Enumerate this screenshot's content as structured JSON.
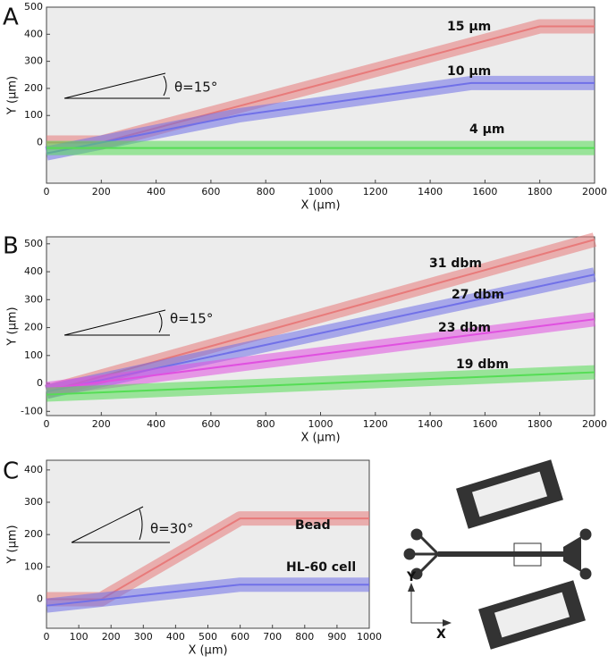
{
  "chart_data": [
    {
      "type": "line",
      "panel": "A",
      "xlabel": "X (μm)",
      "ylabel": "Y (μm)",
      "angle_label": "θ=15°",
      "xlim": [
        0,
        2000
      ],
      "ylim": [
        -150,
        500
      ],
      "xticks": [
        0,
        200,
        400,
        600,
        800,
        1000,
        1200,
        1400,
        1600,
        1800,
        2000
      ],
      "yticks": [
        0,
        100,
        200,
        300,
        400,
        500
      ],
      "series": [
        {
          "name": "15 μm",
          "color": "#e87a7a",
          "x": [
            0,
            200,
            1800,
            2000
          ],
          "values": [
            0,
            0,
            429,
            429
          ]
        },
        {
          "name": "10 μm",
          "color": "#7070e8",
          "x": [
            0,
            700,
            1550,
            2000
          ],
          "values": [
            -40,
            100,
            220,
            220
          ]
        },
        {
          "name": "4 μm",
          "color": "#55dd55",
          "x": [
            0,
            2000
          ],
          "values": [
            -20,
            -20
          ]
        }
      ]
    },
    {
      "type": "line",
      "panel": "B",
      "xlabel": "X (μm)",
      "ylabel": "Y (μm)",
      "angle_label": "θ=15°",
      "xlim": [
        0,
        2000
      ],
      "ylim": [
        -115,
        525
      ],
      "xticks": [
        0,
        200,
        400,
        600,
        800,
        1000,
        1200,
        1400,
        1600,
        1800,
        2000
      ],
      "yticks": [
        -100,
        0,
        100,
        200,
        300,
        400,
        500
      ],
      "series": [
        {
          "name": "31 dbm",
          "color": "#e87a7a",
          "x": [
            0,
            2000
          ],
          "values": [
            -30,
            515
          ]
        },
        {
          "name": "27 dbm",
          "color": "#7070e8",
          "x": [
            0,
            2000
          ],
          "values": [
            -30,
            390
          ]
        },
        {
          "name": "23 dbm",
          "color": "#e050e0",
          "x": [
            0,
            2000
          ],
          "values": [
            -20,
            230
          ]
        },
        {
          "name": "19 dbm",
          "color": "#55dd55",
          "x": [
            0,
            2000
          ],
          "values": [
            -40,
            40
          ]
        }
      ]
    },
    {
      "type": "line",
      "panel": "C",
      "xlabel": "X (μm)",
      "ylabel": "Y (μm)",
      "angle_label": "θ=30°",
      "xlim": [
        0,
        1000
      ],
      "ylim": [
        -90,
        430
      ],
      "xticks": [
        0,
        100,
        200,
        300,
        400,
        500,
        600,
        700,
        800,
        900,
        1000
      ],
      "yticks": [
        0,
        100,
        200,
        300,
        400
      ],
      "series": [
        {
          "name": "Bead",
          "color": "#e87a7a",
          "x": [
            0,
            170,
            600,
            1000
          ],
          "values": [
            0,
            0,
            250,
            250
          ]
        },
        {
          "name": "HL-60 cell",
          "color": "#7070e8",
          "x": [
            0,
            600,
            1000
          ],
          "values": [
            -20,
            45,
            45
          ]
        }
      ]
    }
  ],
  "schematic_axes": {
    "y_label": "Y",
    "x_label": "X"
  }
}
